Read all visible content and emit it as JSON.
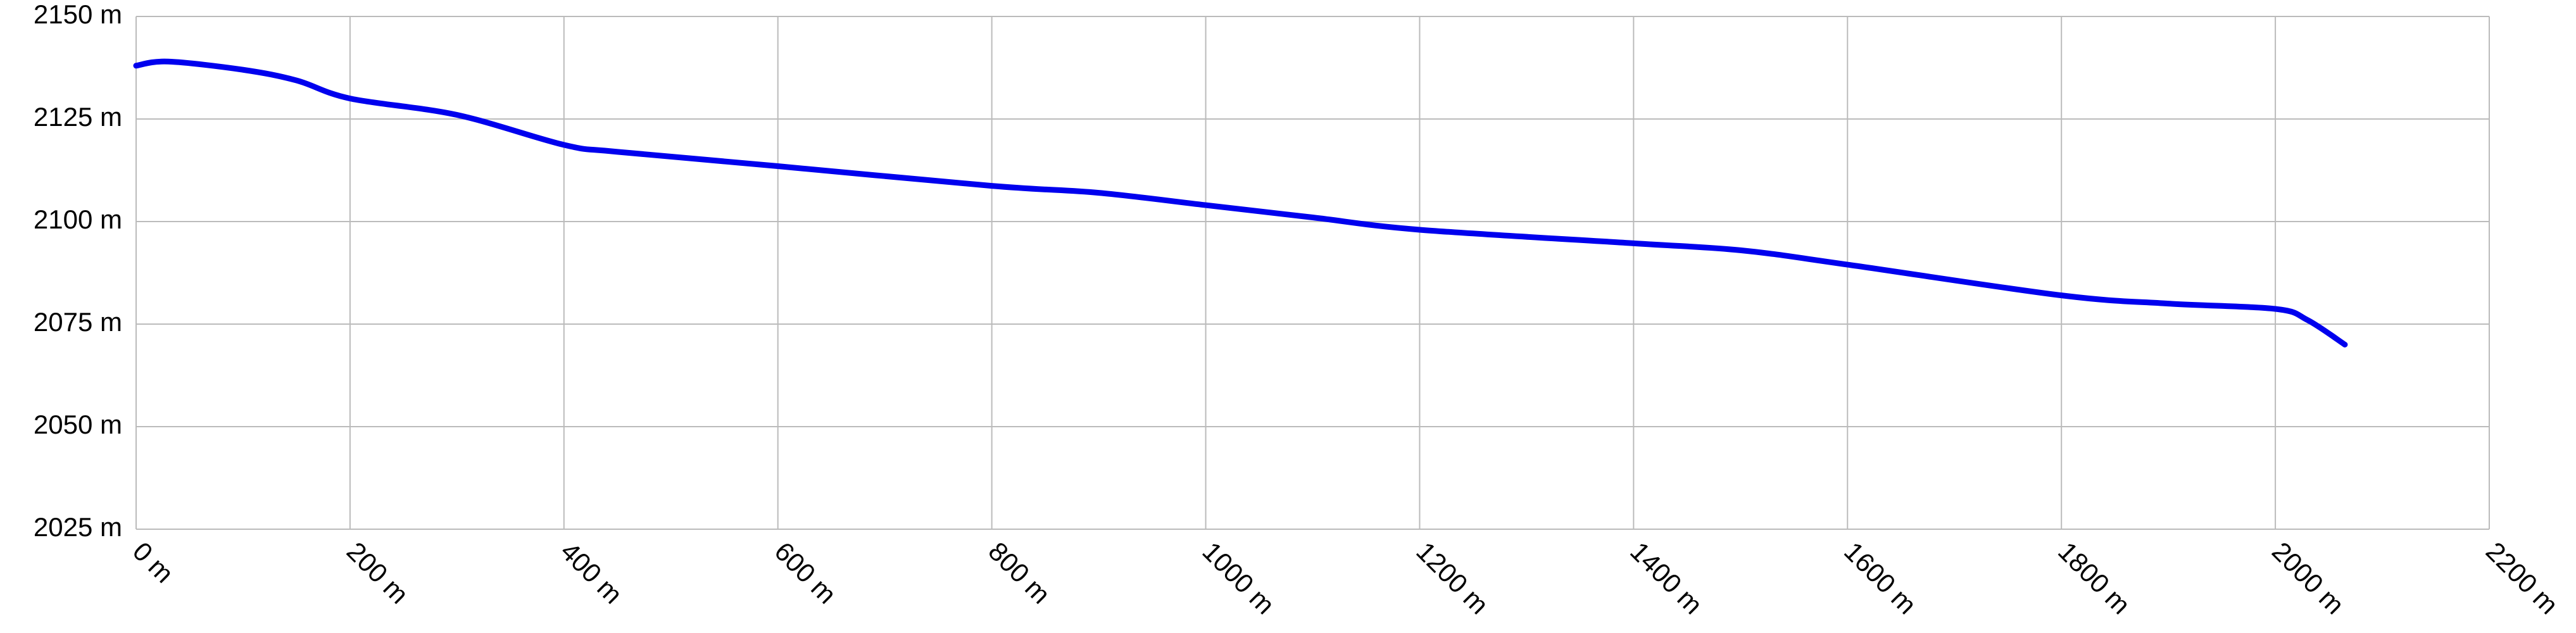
{
  "chart_data": {
    "type": "line",
    "color": "#0000ee",
    "grid": true,
    "x": [
      0,
      30,
      100,
      150,
      200,
      300,
      400,
      450,
      600,
      800,
      900,
      1000,
      1100,
      1200,
      1400,
      1500,
      1600,
      1800,
      1900,
      2000,
      2030,
      2065
    ],
    "values": [
      2138,
      2139,
      2137,
      2134.4,
      2130,
      2126,
      2118.7,
      2117,
      2113.5,
      2108.7,
      2107,
      2104,
      2101,
      2098,
      2094.7,
      2093,
      2089.5,
      2082,
      2080,
      2078.7,
      2076,
      2070
    ],
    "xlim": [
      0,
      2200
    ],
    "xticks": [
      {
        "value": 0,
        "label": "0 m"
      },
      {
        "value": 200,
        "label": "200 m"
      },
      {
        "value": 400,
        "label": "400 m"
      },
      {
        "value": 600,
        "label": "600 m"
      },
      {
        "value": 800,
        "label": "800 m"
      },
      {
        "value": 1000,
        "label": "1000 m"
      },
      {
        "value": 1200,
        "label": "1200 m"
      },
      {
        "value": 1400,
        "label": "1400 m"
      },
      {
        "value": 1600,
        "label": "1600 m"
      },
      {
        "value": 1800,
        "label": "1800 m"
      },
      {
        "value": 2000,
        "label": "2000 m"
      },
      {
        "value": 2200,
        "label": "2200 m"
      }
    ],
    "ylim": [
      2025,
      2150
    ],
    "yticks": [
      {
        "value": 2025,
        "label": "2025 m"
      },
      {
        "value": 2050,
        "label": "2050 m"
      },
      {
        "value": 2075,
        "label": "2075 m"
      },
      {
        "value": 2100,
        "label": "2100 m"
      },
      {
        "value": 2125,
        "label": "2125 m"
      },
      {
        "value": 2150,
        "label": "2150 m"
      }
    ]
  }
}
